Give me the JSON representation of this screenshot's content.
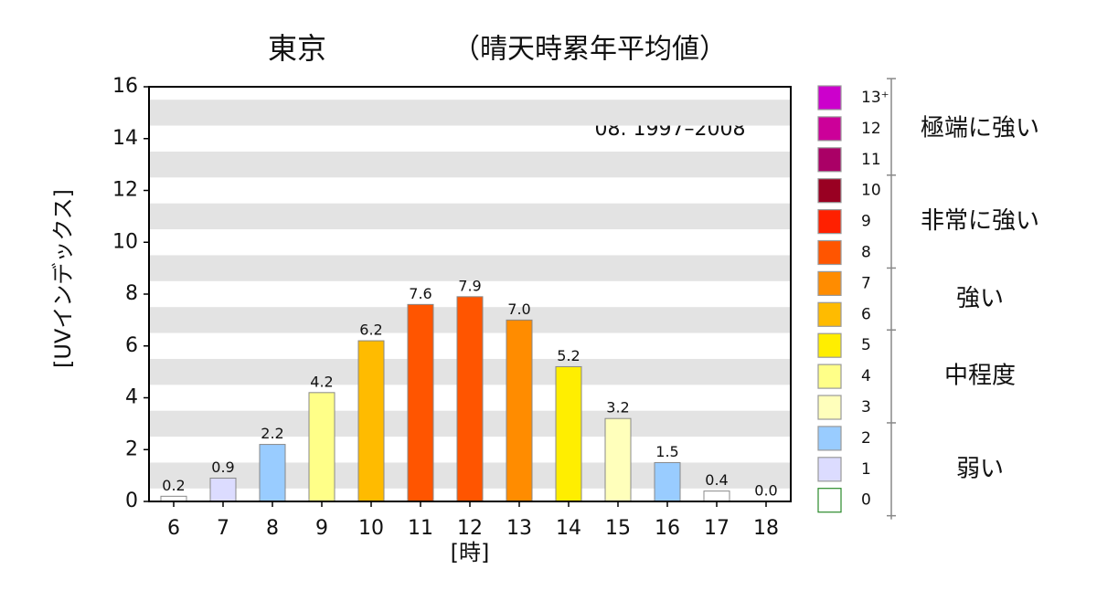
{
  "chart_data": {
    "type": "bar",
    "title": "東京",
    "subtitle": "（晴天時累年平均値）",
    "annotation": "08. 1997–2008",
    "x_label": "[時]",
    "y_label": "[UVインデックス]",
    "categories": [
      "6",
      "7",
      "8",
      "9",
      "10",
      "11",
      "12",
      "13",
      "14",
      "15",
      "16",
      "17",
      "18"
    ],
    "values": [
      0.2,
      0.9,
      2.2,
      4.2,
      6.2,
      7.6,
      7.9,
      7.0,
      5.2,
      3.2,
      1.5,
      0.4,
      0.0
    ],
    "value_labels": [
      "0.2",
      "0.9",
      "2.2",
      "4.2",
      "6.2",
      "7.6",
      "7.9",
      "7.0",
      "5.2",
      "3.2",
      "1.5",
      "0.4",
      "0.0"
    ],
    "colors": [
      "#ffffff",
      "#dcdcff",
      "#99ccff",
      "#ffff88",
      "#ffbb00",
      "#ff5500",
      "#ff5500",
      "#ff8c00",
      "#ffee00",
      "#ffffbb",
      "#99ccff",
      "#ffffff",
      "#ffffff"
    ],
    "ylim": [
      0,
      16
    ],
    "yticks": [
      0,
      2,
      4,
      6,
      8,
      10,
      12,
      14,
      16
    ],
    "grid": true,
    "legend": {
      "groups": [
        {
          "label": "極端に強い",
          "items": [
            {
              "label": "13⁺",
              "color": "#cc00cc"
            },
            {
              "label": "12",
              "color": "#cc0099"
            },
            {
              "label": "11",
              "color": "#aa0066"
            }
          ]
        },
        {
          "label": "非常に強い",
          "items": [
            {
              "label": "10",
              "color": "#990022"
            },
            {
              "label": "9",
              "color": "#ff2000"
            },
            {
              "label": "8",
              "color": "#ff5500"
            }
          ]
        },
        {
          "label": "強い",
          "items": [
            {
              "label": "7",
              "color": "#ff8c00"
            },
            {
              "label": "6",
              "color": "#ffbb00"
            }
          ]
        },
        {
          "label": "中程度",
          "items": [
            {
              "label": "5",
              "color": "#ffee00"
            },
            {
              "label": "4",
              "color": "#ffff88"
            },
            {
              "label": "3",
              "color": "#ffffbb"
            }
          ]
        },
        {
          "label": "弱い",
          "items": [
            {
              "label": "2",
              "color": "#99ccff"
            },
            {
              "label": "1",
              "color": "#dcdcff"
            },
            {
              "label": "0",
              "color": "#ffffff"
            }
          ]
        }
      ]
    }
  }
}
